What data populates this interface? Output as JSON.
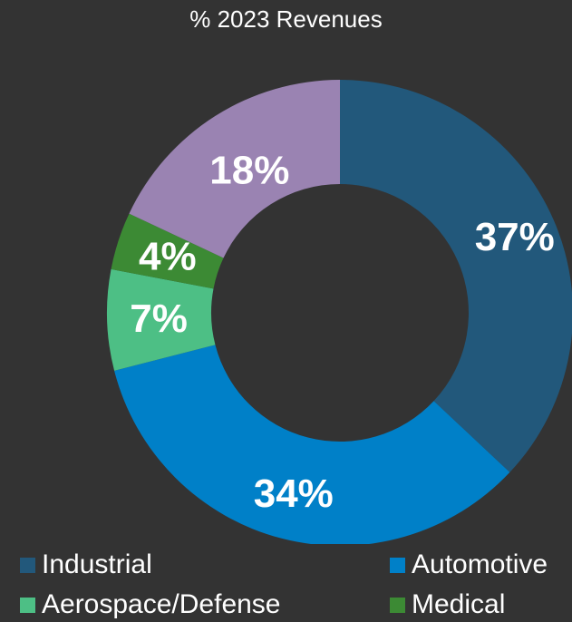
{
  "chart_data": {
    "type": "pie",
    "title": "% 2023 Revenues",
    "donut": true,
    "legend_position": "bottom",
    "series": [
      {
        "name": "Industrial",
        "value": 37,
        "label": "37%",
        "color": "#22587B"
      },
      {
        "name": "Automotive",
        "value": 34,
        "label": "34%",
        "color": "#0080C8"
      },
      {
        "name": "Aerospace/Defense",
        "value": 7,
        "label": "7%",
        "color": "#4DBF85"
      },
      {
        "name": "Medical",
        "value": 4,
        "label": "4%",
        "color": "#3C8A34"
      },
      {
        "name": "",
        "value": 18,
        "label": "18%",
        "color": "#9A83B2"
      }
    ]
  },
  "legend": [
    {
      "label": "Industrial",
      "color": "#22587B"
    },
    {
      "label": "Automotive",
      "color": "#0080C8"
    },
    {
      "label": "Aerospace/Defense",
      "color": "#4DBF85"
    },
    {
      "label": "Medical",
      "color": "#3C8A34"
    }
  ]
}
